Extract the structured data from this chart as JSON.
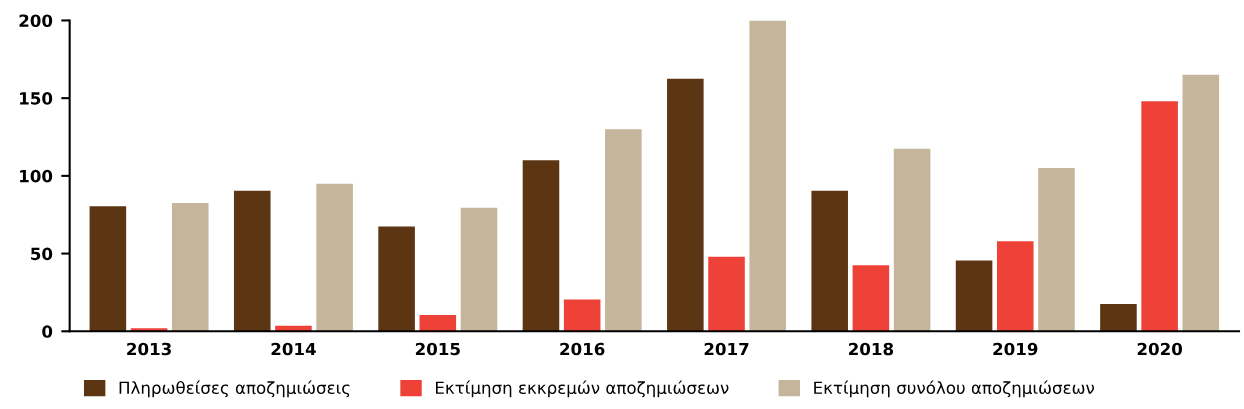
{
  "chart_data": {
    "type": "bar",
    "categories": [
      "2013",
      "2014",
      "2015",
      "2016",
      "2017",
      "2018",
      "2019",
      "2020"
    ],
    "series": [
      {
        "name": "Πληρωθείσες αποζημιώσεις",
        "color": "#5c3613",
        "values": [
          80.5,
          90.5,
          67.5,
          110,
          162.5,
          90.5,
          45.5,
          17.5
        ]
      },
      {
        "name": "Εκτίμηση εκκρεμών αποζημιώσεων",
        "color": "#ee4138",
        "values": [
          2,
          3.5,
          10.5,
          20.5,
          48,
          42.5,
          58,
          148
        ]
      },
      {
        "name": "Εκτίμηση συνόλου αποζημιώσεων",
        "color": "#c4b59b",
        "values": [
          82.5,
          95,
          79.5,
          130,
          200,
          117.5,
          105,
          165
        ]
      }
    ],
    "ylim": [
      0,
      200
    ],
    "yticks": [
      0,
      50,
      100,
      150,
      200
    ],
    "grid": false,
    "legend": "bottom"
  }
}
